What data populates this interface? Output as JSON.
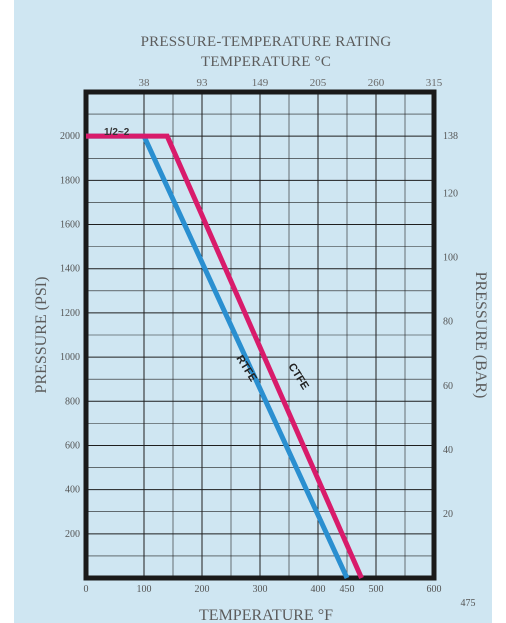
{
  "chart_data": {
    "type": "line",
    "title": "PRESSURE-TEMPERATURE RATING",
    "x2label": "TEMPERATURE °C",
    "xlabel": "TEMPERATURE °F",
    "ylabel": "PRESSURE (PSI)",
    "y2label": "PRESSURE (BAR)",
    "xlim": [
      0,
      600
    ],
    "ylim": [
      0,
      2200
    ],
    "x_ticks": [
      "0",
      "100",
      "200",
      "300",
      "400",
      "450",
      "500",
      "600"
    ],
    "x_tick_values": [
      0,
      100,
      200,
      300,
      400,
      450,
      500,
      600
    ],
    "y_ticks": [
      "200",
      "400",
      "600",
      "800",
      "1000",
      "1200",
      "1400",
      "1600",
      "1800",
      "2000"
    ],
    "y_tick_values": [
      200,
      400,
      600,
      800,
      1000,
      1200,
      1400,
      1600,
      1800,
      2000
    ],
    "x2_ticks": [
      "38",
      "93",
      "149",
      "205",
      "260",
      "315"
    ],
    "x2_tick_values_F": [
      100,
      200,
      300,
      400,
      500,
      600
    ],
    "y2_ticks": [
      "138",
      "120",
      "100",
      "80",
      "60",
      "40",
      "20"
    ],
    "y2_tick_values_psi": [
      2000,
      1740,
      1450,
      1160,
      870,
      580,
      290
    ],
    "annotations": [
      "1/2~2",
      "475"
    ],
    "grid": true,
    "series": [
      {
        "name": "RTFE",
        "color": "#2a8fd0",
        "x": [
          0,
          100,
          450
        ],
        "y": [
          2000,
          2000,
          0
        ]
      },
      {
        "name": "CTFE",
        "color": "#d81b6b",
        "x": [
          0,
          140,
          475
        ],
        "y": [
          2000,
          2000,
          0
        ]
      }
    ]
  }
}
